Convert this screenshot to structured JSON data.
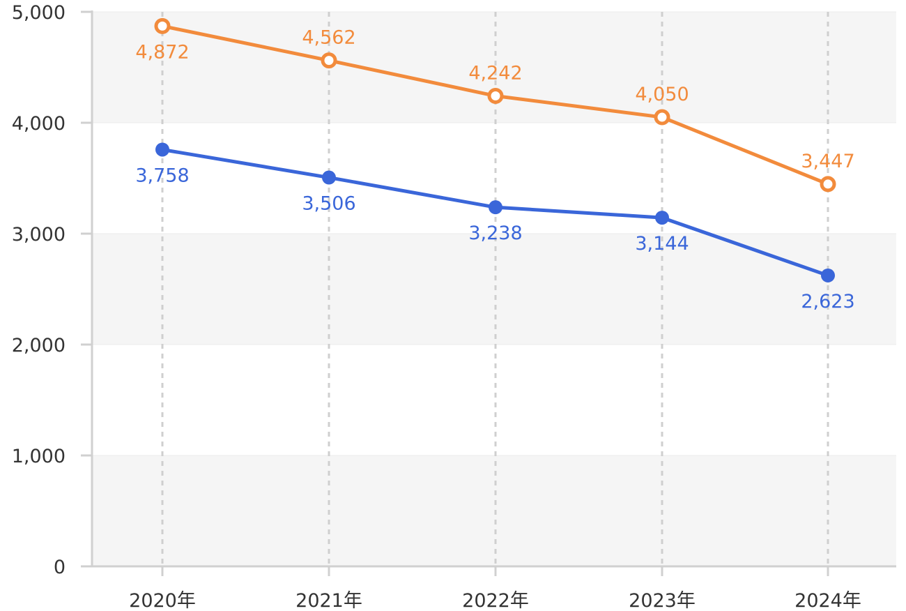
{
  "chart_data": {
    "type": "line",
    "categories": [
      "2020年",
      "2021年",
      "2022年",
      "2023年",
      "2024年"
    ],
    "series": [
      {
        "values": [
          4872,
          4562,
          4242,
          4050,
          3447
        ],
        "color": "#f28b3c",
        "marker": "hollow-circle",
        "label_position": "mixed"
      },
      {
        "values": [
          3758,
          3506,
          3238,
          3144,
          2623
        ],
        "color": "#3a66d9",
        "marker": "filled-circle",
        "label_position": "below"
      }
    ],
    "ylim": [
      0,
      5000
    ],
    "yticks": [
      0,
      1000,
      2000,
      3000,
      4000,
      5000
    ],
    "ytick_labels": [
      "0",
      "1,000",
      "2,000",
      "3,000",
      "4,000",
      "5,000"
    ],
    "grid": "alternating horizontal bands, dashed vertical lines",
    "title": "",
    "xlabel": "",
    "ylabel": ""
  }
}
